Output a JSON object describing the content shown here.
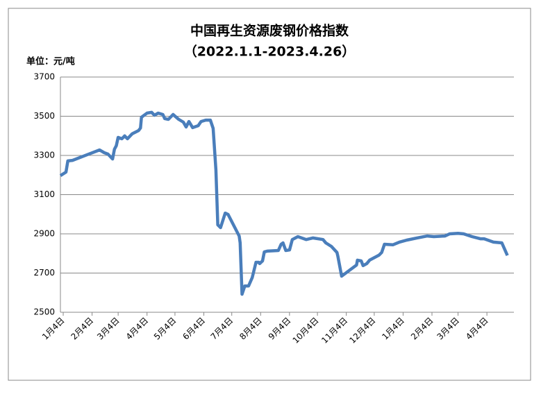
{
  "chart_data": {
    "type": "line",
    "title": "中国再生资源废钢价格指数",
    "subtitle": "（2022.1.1-2023.4.26）",
    "y_label": "单位：元/吨",
    "color": "#4a7ebb",
    "grid": true,
    "ylim": [
      2500,
      3700
    ],
    "yticks": [
      2500,
      2700,
      2900,
      3100,
      3300,
      3500,
      3700
    ],
    "xlim": [
      0,
      487
    ],
    "xticks": [
      {
        "value": 3,
        "label": "1月4日"
      },
      {
        "value": 34,
        "label": "2月4日"
      },
      {
        "value": 62,
        "label": "3月4日"
      },
      {
        "value": 93,
        "label": "4月4日"
      },
      {
        "value": 123,
        "label": "5月4日"
      },
      {
        "value": 154,
        "label": "6月4日"
      },
      {
        "value": 184,
        "label": "7月4日"
      },
      {
        "value": 215,
        "label": "8月4日"
      },
      {
        "value": 246,
        "label": "9月4日"
      },
      {
        "value": 276,
        "label": "10月4日"
      },
      {
        "value": 307,
        "label": "11月4日"
      },
      {
        "value": 337,
        "label": "12月4日"
      },
      {
        "value": 368,
        "label": "1月4日"
      },
      {
        "value": 399,
        "label": "2月4日"
      },
      {
        "value": 427,
        "label": "3月4日"
      },
      {
        "value": 458,
        "label": "4月4日"
      }
    ],
    "x": [
      0,
      6,
      8,
      13,
      42,
      47,
      51,
      56,
      58,
      60,
      62,
      66,
      69,
      72,
      77,
      84,
      86,
      87,
      93,
      98,
      101,
      105,
      110,
      112,
      116,
      121,
      127,
      132,
      135,
      138,
      142,
      148,
      151,
      156,
      161,
      164,
      167,
      169,
      172,
      177,
      180,
      192,
      193,
      195,
      198,
      202,
      206,
      210,
      213,
      214,
      217,
      219,
      222,
      234,
      237,
      239,
      242,
      246,
      249,
      255,
      264,
      271,
      282,
      285,
      291,
      297,
      298,
      302,
      318,
      319,
      323,
      325,
      329,
      332,
      342,
      345,
      348,
      357,
      364,
      372,
      383,
      394,
      401,
      413,
      418,
      427,
      433,
      442,
      451,
      455,
      465,
      474,
      480
    ],
    "series": [
      {
        "values": [
          3197,
          3215,
          3272,
          3275,
          3328,
          3314,
          3307,
          3282,
          3332,
          3350,
          3392,
          3385,
          3400,
          3385,
          3410,
          3427,
          3440,
          3495,
          3516,
          3520,
          3505,
          3516,
          3509,
          3488,
          3484,
          3509,
          3484,
          3470,
          3445,
          3473,
          3442,
          3452,
          3473,
          3480,
          3480,
          3438,
          3226,
          2946,
          2932,
          3006,
          2999,
          2889,
          2854,
          2592,
          2634,
          2634,
          2677,
          2755,
          2755,
          2748,
          2762,
          2808,
          2812,
          2815,
          2847,
          2854,
          2815,
          2818,
          2871,
          2886,
          2871,
          2879,
          2871,
          2854,
          2836,
          2805,
          2784,
          2684,
          2741,
          2766,
          2762,
          2738,
          2748,
          2766,
          2791,
          2805,
          2847,
          2844,
          2858,
          2868,
          2879,
          2889,
          2886,
          2889,
          2900,
          2903,
          2900,
          2886,
          2875,
          2875,
          2858,
          2854,
          2790
        ]
      }
    ]
  }
}
